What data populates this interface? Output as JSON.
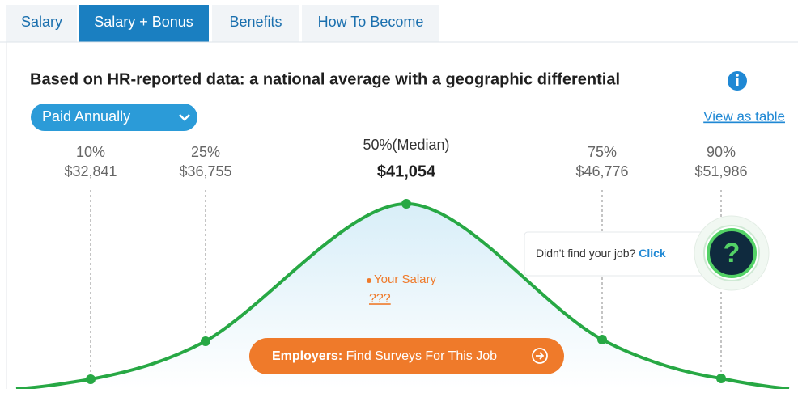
{
  "tabs": [
    "Salary",
    "Salary + Bonus",
    "Benefits",
    "How To Become"
  ],
  "active_tab": 1,
  "heading": "Based on HR-reported data: a national average with a geographic differential",
  "dropdown": "Paid Annually",
  "table_link": "View as table",
  "percentiles": [
    {
      "label": "10%",
      "value": "$32,841"
    },
    {
      "label": "25%",
      "value": "$36,755"
    },
    {
      "label": "50%(Median)",
      "value": "$41,054"
    },
    {
      "label": "75%",
      "value": "$46,776"
    },
    {
      "label": "90%",
      "value": "$51,986"
    }
  ],
  "your_salary": {
    "label": "Your Salary",
    "value": "???"
  },
  "employers_button": {
    "lead": "Employers:",
    "text": "Find Surveys For This Job"
  },
  "help": {
    "question": "Didn't find your job?",
    "action": "Click",
    "icon": "?"
  }
}
